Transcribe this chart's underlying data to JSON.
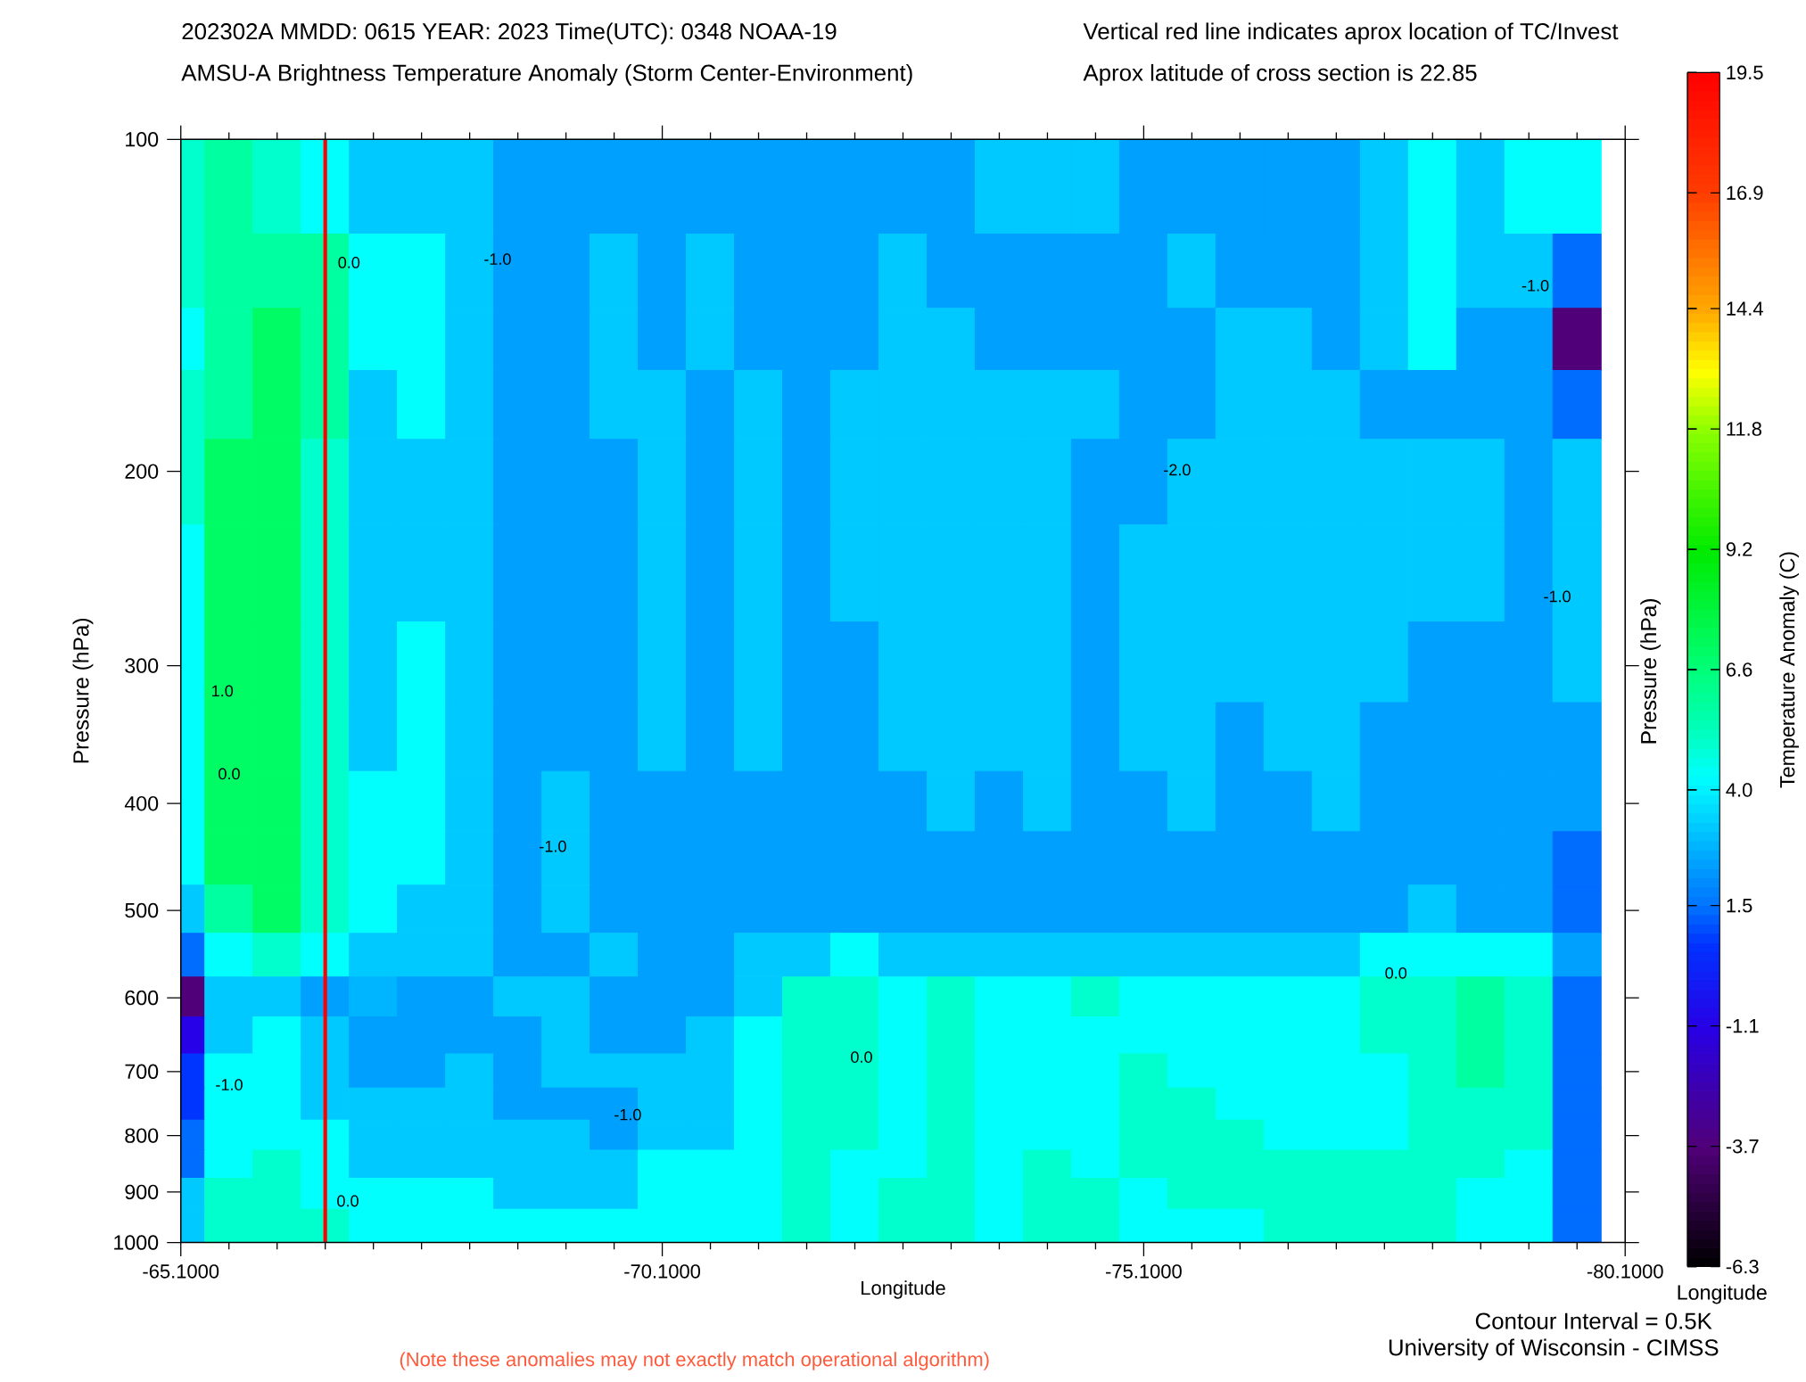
{
  "chart_data": {
    "type": "heatmap",
    "title": "202302A MMDD: 0615 YEAR: 2023 Time(UTC): 0348 NOAA-19",
    "subtitle": "AMSU-A Brightness Temperature Anomaly (Storm Center-Environment)",
    "xlabel": "Longitude",
    "ylabel": "Pressure (hPa)",
    "y2label": "Pressure (hPa)",
    "clabel": "Temperature Anomaly (C)",
    "x": [
      -65.1,
      -65.6,
      -66.1,
      -66.6,
      -67.1,
      -67.6,
      -68.1,
      -68.6,
      -69.1,
      -69.6,
      -70.1,
      -70.6,
      -71.1,
      -71.6,
      -72.1,
      -72.6,
      -73.1,
      -73.6,
      -74.1,
      -74.6,
      -75.1,
      -75.6,
      -76.1,
      -76.6,
      -77.1,
      -77.6,
      -78.1,
      -78.6,
      -79.1,
      -79.6
    ],
    "y": [
      110,
      135,
      150,
      175,
      200,
      250,
      300,
      350,
      400,
      450,
      500,
      550,
      600,
      650,
      700,
      750,
      800,
      850,
      900,
      967
    ],
    "cells": [
      [
        5.0,
        5.8,
        5.0,
        4.3,
        3.2,
        3.2,
        3.2,
        2.4,
        2.4,
        2.4,
        2.4,
        2.4,
        2.4,
        2.4,
        2.4,
        2.4,
        2.4,
        3.2,
        3.2,
        3.2,
        2.4,
        2.4,
        2.4,
        2.4,
        2.4,
        3.2,
        4.3,
        3.2,
        4.3,
        4.3
      ],
      [
        5.0,
        5.8,
        5.8,
        5.8,
        4.3,
        4.3,
        3.2,
        2.4,
        2.4,
        3.2,
        2.4,
        3.2,
        2.4,
        2.4,
        2.4,
        3.2,
        2.4,
        2.4,
        2.4,
        2.4,
        2.4,
        3.2,
        2.4,
        2.4,
        2.4,
        3.2,
        4.3,
        3.2,
        3.2,
        1.4
      ],
      [
        4.3,
        5.8,
        7.0,
        5.8,
        4.3,
        4.3,
        3.2,
        2.4,
        2.4,
        3.2,
        2.4,
        3.2,
        2.4,
        2.4,
        2.4,
        3.2,
        3.2,
        2.4,
        2.4,
        2.4,
        2.4,
        2.4,
        3.2,
        3.2,
        2.4,
        3.2,
        4.3,
        2.4,
        2.4,
        -3.7
      ],
      [
        5.0,
        5.8,
        7.0,
        5.8,
        3.2,
        4.3,
        3.2,
        2.4,
        2.4,
        3.2,
        3.2,
        2.4,
        3.2,
        2.4,
        3.2,
        3.2,
        3.2,
        3.2,
        3.2,
        3.2,
        2.4,
        2.4,
        3.2,
        3.2,
        3.2,
        2.4,
        2.4,
        2.4,
        2.4,
        1.4
      ],
      [
        5.0,
        7.0,
        7.0,
        5.0,
        3.2,
        3.2,
        3.2,
        2.4,
        2.4,
        2.4,
        3.2,
        2.4,
        3.2,
        2.4,
        3.2,
        3.2,
        3.2,
        3.2,
        3.2,
        2.4,
        2.4,
        3.2,
        3.2,
        3.2,
        3.2,
        3.2,
        3.2,
        3.2,
        2.4,
        3.2
      ],
      [
        4.3,
        7.0,
        7.0,
        5.0,
        3.2,
        3.2,
        3.2,
        2.4,
        2.4,
        2.4,
        3.2,
        2.4,
        3.2,
        2.4,
        3.2,
        3.2,
        3.2,
        3.2,
        3.2,
        2.4,
        3.2,
        3.2,
        3.2,
        3.2,
        3.2,
        3.2,
        3.2,
        3.2,
        2.4,
        3.2
      ],
      [
        4.3,
        7.0,
        7.0,
        5.0,
        3.2,
        4.3,
        3.2,
        2.4,
        2.4,
        2.4,
        3.2,
        2.4,
        3.2,
        2.4,
        2.4,
        3.2,
        3.2,
        3.2,
        3.2,
        2.4,
        3.2,
        3.2,
        3.2,
        3.2,
        3.2,
        3.2,
        2.4,
        2.4,
        2.4,
        3.2
      ],
      [
        4.3,
        7.0,
        7.0,
        5.0,
        3.2,
        4.3,
        3.2,
        2.4,
        2.4,
        2.4,
        3.2,
        2.4,
        3.2,
        2.4,
        2.4,
        3.2,
        3.2,
        3.2,
        3.2,
        2.4,
        3.2,
        3.2,
        2.4,
        3.2,
        3.2,
        2.4,
        2.4,
        2.4,
        2.4,
        2.4
      ],
      [
        4.3,
        7.0,
        7.0,
        5.0,
        4.3,
        4.3,
        3.2,
        2.4,
        3.2,
        2.4,
        2.4,
        2.4,
        2.4,
        2.4,
        2.4,
        2.4,
        3.2,
        2.4,
        3.2,
        2.4,
        2.4,
        3.2,
        2.4,
        2.4,
        3.2,
        2.4,
        2.4,
        2.4,
        2.4,
        2.4
      ],
      [
        4.3,
        7.0,
        7.0,
        5.0,
        4.3,
        4.3,
        3.2,
        2.4,
        3.2,
        2.4,
        2.4,
        2.4,
        2.4,
        2.4,
        2.4,
        2.4,
        2.4,
        2.4,
        2.4,
        2.4,
        2.4,
        2.4,
        2.4,
        2.4,
        2.4,
        2.4,
        2.4,
        2.4,
        2.4,
        1.4
      ],
      [
        3.2,
        5.8,
        7.0,
        5.0,
        4.3,
        3.2,
        3.2,
        2.4,
        3.2,
        2.4,
        2.4,
        2.4,
        2.4,
        2.4,
        2.4,
        2.4,
        2.4,
        2.4,
        2.4,
        2.4,
        2.4,
        2.4,
        2.4,
        2.4,
        2.4,
        2.4,
        3.2,
        2.4,
        2.4,
        1.4
      ],
      [
        1.4,
        4.3,
        5.0,
        4.3,
        3.2,
        3.2,
        3.2,
        2.4,
        2.4,
        3.2,
        2.4,
        2.4,
        3.2,
        3.2,
        4.3,
        3.2,
        3.2,
        3.2,
        3.2,
        3.2,
        3.2,
        3.2,
        3.2,
        3.2,
        3.2,
        4.3,
        4.3,
        4.3,
        4.3,
        2.4
      ],
      [
        -3.7,
        3.2,
        3.2,
        2.4,
        2.8,
        2.4,
        2.4,
        3.2,
        3.2,
        2.4,
        2.4,
        2.4,
        3.2,
        5.0,
        5.0,
        4.3,
        5.0,
        4.3,
        4.3,
        5.0,
        4.3,
        4.3,
        4.3,
        4.3,
        4.3,
        5.0,
        5.0,
        5.8,
        5.0,
        1.4
      ],
      [
        -1.1,
        3.2,
        4.3,
        3.2,
        2.4,
        2.4,
        2.4,
        2.4,
        3.2,
        2.4,
        2.4,
        3.2,
        4.3,
        5.0,
        5.0,
        4.3,
        5.0,
        4.3,
        4.3,
        4.3,
        4.3,
        4.3,
        4.3,
        4.3,
        4.3,
        5.0,
        5.0,
        5.8,
        5.0,
        1.4
      ],
      [
        0.7,
        4.3,
        4.3,
        3.2,
        2.4,
        2.4,
        3.2,
        2.4,
        3.2,
        3.2,
        3.2,
        3.2,
        4.3,
        5.0,
        5.0,
        4.3,
        5.0,
        4.3,
        4.3,
        4.3,
        5.0,
        4.3,
        4.3,
        4.3,
        4.3,
        4.3,
        5.0,
        5.8,
        5.0,
        1.4
      ],
      [
        0.7,
        4.3,
        4.3,
        3.2,
        3.2,
        3.2,
        3.2,
        2.4,
        2.4,
        2.4,
        3.2,
        3.2,
        4.3,
        5.0,
        5.0,
        4.3,
        5.0,
        4.3,
        4.3,
        4.3,
        5.0,
        5.0,
        4.3,
        4.3,
        4.3,
        4.3,
        5.0,
        5.0,
        5.0,
        1.4
      ],
      [
        1.4,
        4.3,
        4.3,
        4.3,
        3.2,
        3.2,
        3.2,
        3.2,
        3.2,
        2.4,
        3.2,
        3.2,
        4.3,
        5.0,
        5.0,
        4.3,
        5.0,
        4.3,
        4.3,
        4.3,
        5.0,
        5.0,
        5.0,
        4.3,
        4.3,
        4.3,
        5.0,
        5.0,
        5.0,
        1.4
      ],
      [
        1.4,
        4.3,
        5.0,
        4.3,
        3.2,
        3.2,
        3.2,
        3.2,
        3.2,
        3.2,
        4.3,
        4.3,
        4.3,
        5.0,
        4.3,
        4.3,
        5.0,
        4.3,
        5.0,
        4.3,
        5.0,
        5.0,
        5.0,
        5.0,
        5.0,
        5.0,
        5.0,
        5.0,
        4.3,
        1.4
      ],
      [
        3.2,
        5.0,
        5.0,
        4.3,
        4.3,
        4.3,
        4.3,
        3.2,
        3.2,
        3.2,
        4.3,
        4.3,
        4.3,
        5.0,
        4.3,
        5.0,
        5.0,
        4.3,
        5.0,
        5.0,
        4.3,
        5.0,
        5.0,
        5.0,
        5.0,
        5.0,
        5.0,
        4.3,
        4.3,
        1.4
      ],
      [
        3.2,
        5.0,
        5.0,
        5.0,
        4.3,
        4.3,
        4.3,
        4.3,
        4.3,
        4.3,
        4.3,
        4.3,
        4.3,
        5.0,
        4.3,
        5.0,
        5.0,
        4.3,
        5.0,
        5.0,
        4.3,
        4.3,
        4.3,
        5.0,
        5.0,
        5.0,
        5.0,
        4.3,
        4.3,
        1.4
      ]
    ],
    "xlim": [
      -65.1,
      -80.1
    ],
    "xticks": [
      {
        "value": -65.1,
        "label": "-65.1000"
      },
      {
        "value": -65.6,
        "label": null
      },
      {
        "value": -66.1,
        "label": null
      },
      {
        "value": -66.6,
        "label": null
      },
      {
        "value": -67.1,
        "label": null
      },
      {
        "value": -67.6,
        "label": null
      },
      {
        "value": -68.1,
        "label": null
      },
      {
        "value": -68.6,
        "label": null
      },
      {
        "value": -69.1,
        "label": null
      },
      {
        "value": -69.6,
        "label": null
      },
      {
        "value": -70.1,
        "label": "-70.1000"
      },
      {
        "value": -70.6,
        "label": null
      },
      {
        "value": -71.1,
        "label": null
      },
      {
        "value": -71.6,
        "label": null
      },
      {
        "value": -72.1,
        "label": null
      },
      {
        "value": -72.6,
        "label": null
      },
      {
        "value": -73.1,
        "label": null
      },
      {
        "value": -73.6,
        "label": null
      },
      {
        "value": -74.1,
        "label": null
      },
      {
        "value": -74.6,
        "label": null
      },
      {
        "value": -75.1,
        "label": "-75.1000"
      },
      {
        "value": -75.6,
        "label": null
      },
      {
        "value": -76.1,
        "label": null
      },
      {
        "value": -76.6,
        "label": null
      },
      {
        "value": -77.1,
        "label": null
      },
      {
        "value": -77.6,
        "label": null
      },
      {
        "value": -78.1,
        "label": null
      },
      {
        "value": -78.6,
        "label": null
      },
      {
        "value": -79.1,
        "label": null
      },
      {
        "value": -79.6,
        "label": null
      },
      {
        "value": -80.1,
        "label": "-80.1000"
      }
    ],
    "ylim": [
      1000,
      100
    ],
    "yticks": [
      100,
      200,
      300,
      400,
      500,
      600,
      700,
      800,
      900,
      1000
    ],
    "log": "y",
    "clim": [
      -6.3,
      19.5
    ],
    "cticks": [
      -6.3,
      -3.7,
      -1.1,
      1.5,
      {
        "value": 4.0,
        "label": "4.0"
      },
      6.6,
      9.2,
      11.8,
      14.4,
      16.9,
      19.5
    ],
    "ref_lines": [
      {
        "axis": "x",
        "value": -66.6,
        "color": "#ff0000"
      }
    ],
    "annotations": [
      "Vertical red line indicates aprox location of TC/Invest",
      "Aprox latitude of cross section is 22.85",
      "Contour Interval = 0.5K",
      "University of Wisconsin - CIMSS",
      "Longitude",
      "(Note these anomalies may not exactly match operational algorithm)",
      "0.0",
      "-1.0",
      "1.0",
      "0.0",
      "-1.0",
      "-2.0",
      "-1.0",
      "-1.0",
      "0.0",
      "0.0",
      "-1.0",
      "0.0",
      "-1.0"
    ]
  }
}
